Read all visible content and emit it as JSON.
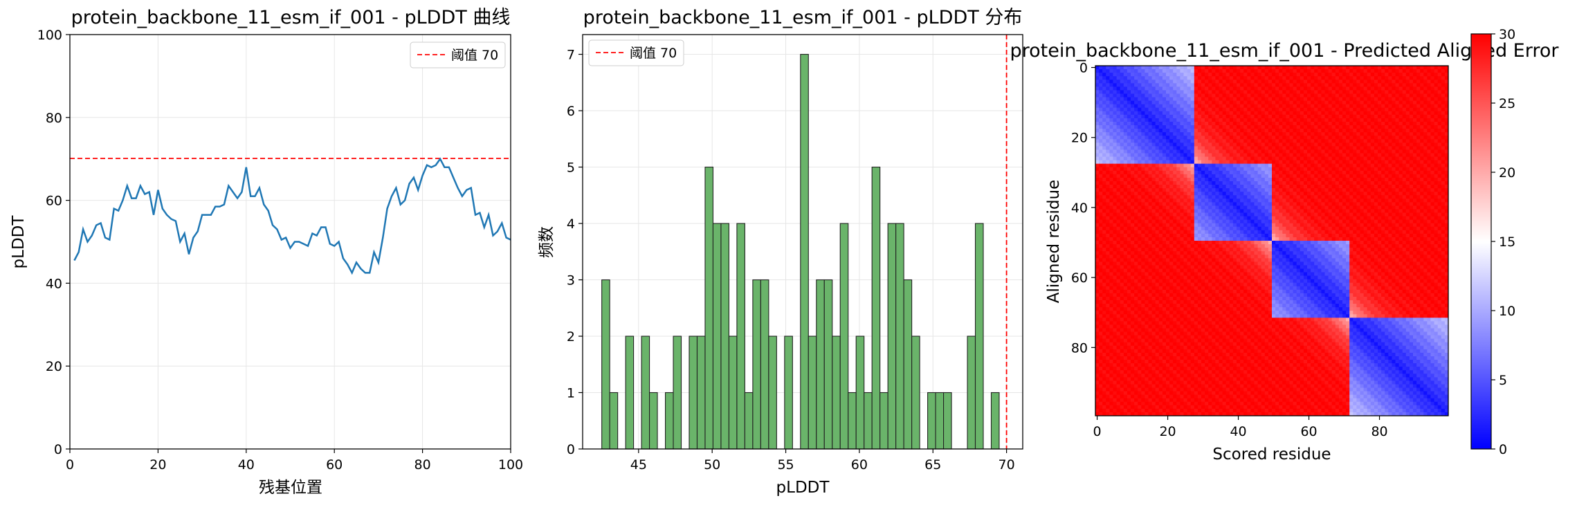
{
  "chart_data": [
    {
      "type": "line",
      "title": "protein_backbone_11_esm_if_001 - pLDDT 曲线",
      "xlabel": "残基位置",
      "ylabel": "pLDDT",
      "xlim": [
        0,
        100
      ],
      "ylim": [
        0,
        100
      ],
      "xticks": [
        "0",
        "20",
        "40",
        "60",
        "80",
        "100"
      ],
      "yticks": [
        "0",
        "20",
        "40",
        "60",
        "80",
        "100"
      ],
      "grid": true,
      "legend_position": "top-right",
      "threshold": {
        "value": 70,
        "label": "阈值 70",
        "color": "#ff0000"
      },
      "series": [
        {
          "color": "#1f77b4",
          "x": [
            1,
            2,
            3,
            4,
            5,
            6,
            7,
            8,
            9,
            10,
            11,
            12,
            13,
            14,
            15,
            16,
            17,
            18,
            19,
            20,
            21,
            22,
            23,
            24,
            25,
            26,
            27,
            28,
            29,
            30,
            31,
            32,
            33,
            34,
            35,
            36,
            37,
            38,
            39,
            40,
            41,
            42,
            43,
            44,
            45,
            46,
            47,
            48,
            49,
            50,
            51,
            52,
            53,
            54,
            55,
            56,
            57,
            58,
            59,
            60,
            61,
            62,
            63,
            64,
            65,
            66,
            67,
            68,
            69,
            70,
            71,
            72,
            73,
            74,
            75,
            76,
            77,
            78,
            79,
            80,
            81,
            82,
            83,
            84,
            85,
            86,
            87,
            88,
            89,
            90,
            91,
            92,
            93,
            94,
            95,
            96,
            97,
            98,
            99,
            100
          ],
          "y": [
            45.5,
            47.5,
            53,
            50,
            51.5,
            54,
            54.5,
            51,
            50.5,
            58,
            57.5,
            60,
            63.5,
            60.5,
            60.5,
            63.5,
            61.5,
            62,
            56.5,
            62.5,
            58,
            56.5,
            55.5,
            55,
            50,
            52,
            47,
            51,
            52.5,
            56.5,
            56.5,
            56.5,
            58.5,
            58.5,
            59,
            63.5,
            62,
            60.5,
            62,
            68,
            61,
            61,
            63,
            59,
            57.5,
            54,
            53,
            50.5,
            51,
            48.5,
            50,
            50,
            49.5,
            49,
            52,
            51.5,
            53.5,
            53.5,
            49.5,
            49,
            50,
            46,
            44.5,
            42.5,
            45,
            43.5,
            42.5,
            42.5,
            47.5,
            45,
            51,
            58,
            61,
            63,
            59,
            60,
            64,
            65.5,
            62.5,
            66,
            68.5,
            68,
            68.5,
            70,
            68,
            68,
            65.5,
            63,
            61,
            62.5,
            63,
            56.5,
            57,
            53.5,
            56.5,
            51.5,
            52.5,
            54.5,
            51,
            50.5
          ]
        }
      ]
    },
    {
      "type": "bar",
      "title": "protein_backbone_11_esm_if_001 - pLDDT 分布",
      "xlabel": "pLDDT",
      "ylabel": "频数",
      "xlim": [
        41.2,
        71.1
      ],
      "ylim": [
        0,
        7.35
      ],
      "xticks": [
        "45",
        "50",
        "55",
        "60",
        "65",
        "70"
      ],
      "yticks": [
        "0",
        "1",
        "2",
        "3",
        "4",
        "5",
        "6",
        "7"
      ],
      "grid": true,
      "legend_position": "top-left",
      "threshold": {
        "value": 70,
        "label": "阈值 70",
        "color": "#ff0000"
      },
      "bar_color": "#6ab46a",
      "bin_start": 42.5,
      "bin_width": 0.54,
      "counts": [
        3,
        1,
        0,
        2,
        0,
        2,
        1,
        0,
        1,
        2,
        0,
        2,
        2,
        5,
        4,
        4,
        2,
        4,
        1,
        3,
        3,
        2,
        0,
        2,
        0,
        7,
        2,
        3,
        3,
        2,
        4,
        1,
        2,
        1,
        5,
        1,
        4,
        4,
        3,
        2,
        0,
        1,
        1,
        1,
        0,
        0,
        2,
        4,
        0,
        1
      ]
    },
    {
      "type": "heatmap",
      "title": "protein_backbone_11_esm_if_001 - Predicted Aligned Error",
      "xlabel": "Scored residue",
      "ylabel": "Aligned residue",
      "xticks": [
        "0",
        "20",
        "40",
        "60",
        "80"
      ],
      "yticks": [
        "0",
        "20",
        "40",
        "60",
        "80"
      ],
      "n": 100,
      "colormap": "bwr",
      "colorbar": {
        "min": 0,
        "max": 30,
        "ticks": [
          "0",
          "5",
          "10",
          "15",
          "20",
          "25",
          "30"
        ]
      },
      "domains": [
        [
          0,
          28
        ],
        [
          28,
          50
        ],
        [
          50,
          72
        ],
        [
          72,
          100
        ]
      ],
      "intra_domain_error": 9,
      "inter_domain_error": 29
    }
  ]
}
